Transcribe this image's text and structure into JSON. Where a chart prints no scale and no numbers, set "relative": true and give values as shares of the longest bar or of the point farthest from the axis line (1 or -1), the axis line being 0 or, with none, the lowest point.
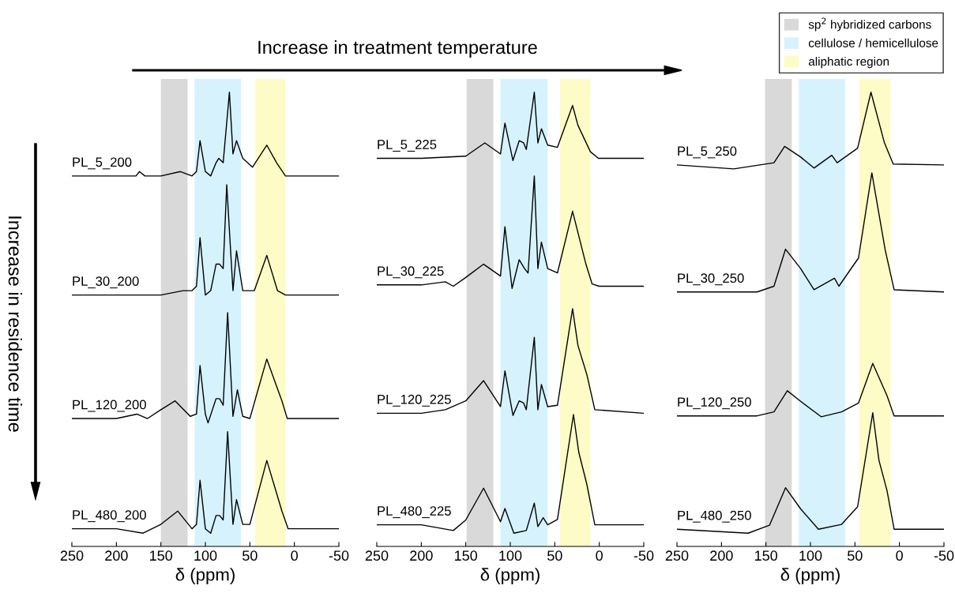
{
  "chart_data": [
    {
      "type": "line",
      "relative": true,
      "xlabel": "δ (ppm)",
      "xlim": [
        250,
        -50
      ],
      "xticks": [
        250,
        200,
        150,
        100,
        50,
        0,
        -50
      ],
      "tick_labels": "x",
      "annotations": [
        "Increase in treatment temperature",
        "Increase in residence time"
      ],
      "bands": [
        {
          "axis": "x",
          "from": 150,
          "to": 120,
          "color": "#d9d9d9"
        },
        {
          "axis": "x",
          "from": 112,
          "to": 60,
          "color": "#d6f2fd"
        },
        {
          "axis": "x",
          "from": 44,
          "to": 10,
          "color": "#fefcc6"
        }
      ],
      "series": [
        {
          "name": "PL_5_200",
          "color": "#000000",
          "x": [
            250,
            200,
            178,
            174,
            168,
            150,
            128,
            115,
            110,
            106,
            100,
            94,
            88,
            85,
            80,
            73,
            69,
            65,
            58,
            47,
            31,
            20,
            10,
            0,
            -50
          ],
          "values": [
            0.81,
            0.81,
            0.81,
            0.82,
            0.81,
            0.81,
            0.82,
            0.81,
            0.82,
            0.89,
            0.82,
            0.81,
            0.84,
            0.85,
            0.84,
            1.0,
            0.86,
            0.89,
            0.85,
            0.83,
            0.88,
            0.84,
            0.81,
            0.81,
            0.81
          ]
        },
        {
          "name": "PL_30_200",
          "color": "#000000",
          "x": [
            250,
            200,
            150,
            125,
            115,
            110,
            106,
            100,
            94,
            88,
            84,
            80,
            76,
            69,
            65,
            58,
            45,
            31,
            19,
            10,
            0,
            -50
          ],
          "values": [
            0.54,
            0.54,
            0.54,
            0.55,
            0.55,
            0.56,
            0.67,
            0.54,
            0.55,
            0.61,
            0.61,
            0.6,
            0.79,
            0.55,
            0.64,
            0.55,
            0.55,
            0.63,
            0.55,
            0.54,
            0.54,
            0.54
          ]
        },
        {
          "name": "PL_120_200",
          "color": "#000000",
          "x": [
            250,
            200,
            177,
            165,
            150,
            134,
            117,
            110,
            106,
            100,
            97,
            88,
            84,
            80,
            75,
            69,
            64,
            58,
            50,
            31,
            14,
            8,
            0,
            -50
          ],
          "values": [
            0.26,
            0.26,
            0.27,
            0.26,
            0.28,
            0.3,
            0.265,
            0.27,
            0.38,
            0.27,
            0.25,
            0.305,
            0.305,
            0.29,
            0.5,
            0.265,
            0.325,
            0.265,
            0.26,
            0.395,
            0.3,
            0.26,
            0.26,
            0.26
          ]
        },
        {
          "name": "PL_480_200",
          "color": "#000000",
          "x": [
            250,
            200,
            170,
            150,
            131,
            115,
            110,
            106,
            100,
            94,
            88,
            84,
            80,
            75,
            69,
            65,
            58,
            50,
            31,
            14,
            7,
            0,
            -50
          ],
          "values": [
            0.01,
            0.01,
            0.0,
            0.02,
            0.05,
            0.01,
            0.02,
            0.12,
            0.01,
            0.0,
            0.04,
            0.04,
            0.03,
            0.23,
            0.02,
            0.076,
            0.02,
            0.02,
            0.165,
            0.05,
            0.01,
            0.01,
            0.01
          ]
        }
      ]
    },
    {
      "type": "line",
      "relative": true,
      "xlabel": "δ (ppm)",
      "xlim": [
        250,
        -50
      ],
      "xticks": [
        250,
        200,
        150,
        100,
        50,
        0,
        -50
      ],
      "tick_labels": "x",
      "bands": [
        {
          "axis": "x",
          "from": 149,
          "to": 119,
          "color": "#d9d9d9"
        },
        {
          "axis": "x",
          "from": 111,
          "to": 58,
          "color": "#d6f2fd"
        },
        {
          "axis": "x",
          "from": 44,
          "to": 10,
          "color": "#fefcc6"
        }
      ],
      "series": [
        {
          "name": "PL_5_225",
          "color": "#000000",
          "x": [
            250,
            200,
            150,
            128.6,
            111,
            106,
            97,
            90,
            85,
            82,
            73,
            69,
            65,
            58,
            47,
            30,
            24,
            10,
            1,
            -50
          ],
          "values": [
            0.85,
            0.85,
            0.855,
            0.885,
            0.86,
            0.93,
            0.845,
            0.89,
            0.885,
            0.87,
            1.0,
            0.885,
            0.917,
            0.88,
            0.875,
            0.97,
            0.925,
            0.865,
            0.85,
            0.85
          ]
        },
        {
          "name": "PL_30_225",
          "color": "#000000",
          "x": [
            250,
            200,
            173,
            164,
            150,
            130,
            111,
            106,
            98,
            90,
            84,
            80,
            73,
            69,
            65,
            58,
            47,
            30,
            15,
            8,
            0,
            -50
          ],
          "values": [
            0.563,
            0.563,
            0.57,
            0.56,
            0.58,
            0.61,
            0.583,
            0.695,
            0.555,
            0.62,
            0.6,
            0.59,
            0.81,
            0.6,
            0.66,
            0.6,
            0.59,
            0.73,
            0.61,
            0.565,
            0.56,
            0.56
          ]
        },
        {
          "name": "PL_120_225",
          "color": "#000000",
          "x": [
            250,
            200,
            173,
            150,
            130,
            111,
            106,
            97,
            90,
            85,
            82,
            73,
            69,
            65,
            58,
            47,
            30,
            24,
            14,
            5,
            -50
          ],
          "values": [
            0.272,
            0.272,
            0.28,
            0.3,
            0.346,
            0.287,
            0.368,
            0.267,
            0.3,
            0.295,
            0.28,
            0.444,
            0.28,
            0.337,
            0.287,
            0.29,
            0.509,
            0.426,
            0.36,
            0.28,
            0.272
          ]
        },
        {
          "name": "PL_480_225",
          "color": "#000000",
          "x": [
            250,
            200,
            164,
            150,
            130,
            111,
            106,
            96,
            82,
            73,
            69,
            63,
            58,
            47,
            29,
            23,
            14,
            5,
            -50
          ],
          "values": [
            0.019,
            0.019,
            0.006,
            0.03,
            0.102,
            0.026,
            0.056,
            0.0,
            0.006,
            0.068,
            0.015,
            0.035,
            0.019,
            0.031,
            0.269,
            0.183,
            0.111,
            0.019,
            0.019
          ]
        }
      ]
    },
    {
      "type": "line",
      "relative": true,
      "xlabel": "δ (ppm)",
      "xlim": [
        250,
        -50
      ],
      "xticks": [
        250,
        200,
        150,
        100,
        50,
        0,
        -50
      ],
      "tick_labels": "x",
      "legend": "top right",
      "bands": [
        {
          "axis": "x",
          "from": 151,
          "to": 121,
          "label": "sp$^{2}$ hybridized carbons",
          "color": "#d9d9d9"
        },
        {
          "axis": "x",
          "from": 113,
          "to": 61,
          "label": "cellulose / hemicellulose",
          "color": "#d6f2fd"
        },
        {
          "axis": "x",
          "from": 45,
          "to": 10,
          "label": "aliphatic region",
          "color": "#fefcc6"
        }
      ],
      "series": [
        {
          "name": "PL_5_250",
          "color": "#000000",
          "x": [
            250,
            186,
            141,
            129,
            111,
            96,
            76,
            70,
            47,
            32,
            17,
            7,
            -50
          ],
          "values": [
            0.835,
            0.826,
            0.84,
            0.877,
            0.853,
            0.828,
            0.857,
            0.84,
            0.873,
            1.0,
            0.886,
            0.837,
            0.835
          ]
        },
        {
          "name": "PL_30_250",
          "color": "#000000",
          "x": [
            250,
            160,
            141,
            128,
            111,
            96,
            73,
            68,
            55,
            46,
            31,
            16,
            6,
            -50
          ],
          "values": [
            0.547,
            0.547,
            0.56,
            0.644,
            0.6,
            0.552,
            0.578,
            0.56,
            0.598,
            0.624,
            0.817,
            0.642,
            0.552,
            0.547
          ]
        },
        {
          "name": "PL_120_250",
          "color": "#000000",
          "x": [
            250,
            160,
            141,
            126,
            111,
            88,
            65,
            46,
            30,
            14,
            6,
            -50
          ],
          "values": [
            0.266,
            0.266,
            0.275,
            0.323,
            0.299,
            0.264,
            0.275,
            0.295,
            0.385,
            0.312,
            0.266,
            0.266
          ]
        },
        {
          "name": "PL_480_250",
          "color": "#000000",
          "x": [
            250,
            170,
            146,
            128,
            111,
            91,
            65,
            47,
            30,
            23,
            14,
            6,
            -50
          ],
          "values": [
            0.009,
            0.0,
            0.018,
            0.103,
            0.055,
            0.009,
            0.02,
            0.06,
            0.273,
            0.165,
            0.097,
            0.009,
            0.009
          ]
        }
      ]
    }
  ]
}
